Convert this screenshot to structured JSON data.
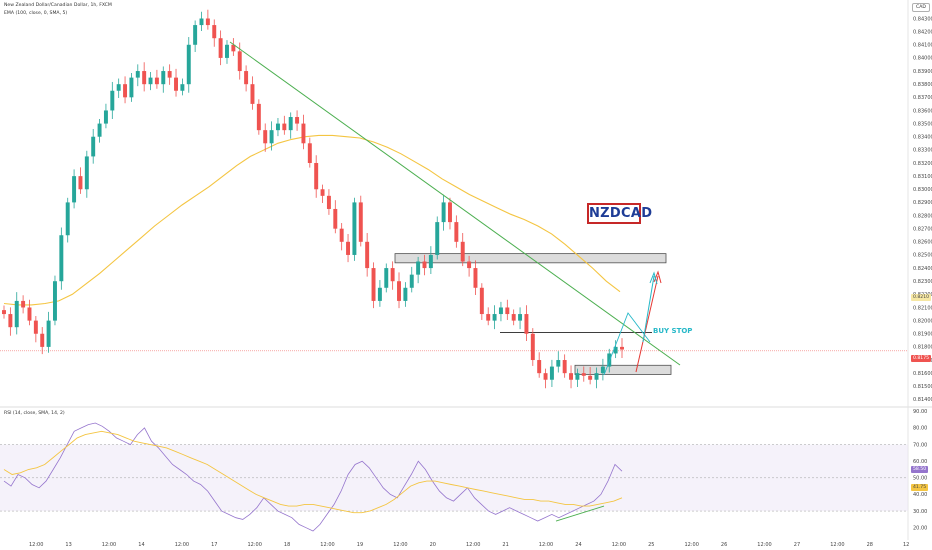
{
  "header": {
    "symbol": "New Zealand Dollar/Canadian Dollar, 1h, FXCM",
    "ema_label": "EMA (100, close, 0, SMA, 5)",
    "rsi_label": "RSI (14, close, SMA, 14, 2)",
    "currency_badge": "CAD"
  },
  "annotations": {
    "pair_label": "NZDCAD",
    "buy_stop": "BUY STOP"
  },
  "price_boxes": {
    "current_a": "0.8210",
    "current_b": "0.8175",
    "rsi_a": "58.50",
    "rsi_b": "41.75"
  },
  "colors": {
    "up": "#26a69a",
    "down": "#ef5350",
    "ema": "#f4c542",
    "trendline": "#4caf50",
    "rsi_line": "#9575cd",
    "rsi_ma": "#f4c542",
    "zone_fill": "#d6d6d6",
    "pair_border": "#c62828",
    "pair_text": "#1e3c96",
    "buy_stop": "#26b8c8"
  },
  "chart_data": [
    {
      "type": "candlestick",
      "y_ticks": [
        "0.84300",
        "0.84200",
        "0.84100",
        "0.84000",
        "0.83900",
        "0.83800",
        "0.83700",
        "0.83600",
        "0.83500",
        "0.83400",
        "0.83300",
        "0.83200",
        "0.83100",
        "0.83000",
        "0.82900",
        "0.82800",
        "0.82700",
        "0.82600",
        "0.82500",
        "0.82400",
        "0.82300",
        "0.82200",
        "0.82100",
        "0.82000",
        "0.81900",
        "0.81800",
        "0.81700",
        "0.81600",
        "0.81500",
        "0.81400"
      ],
      "ylim": [
        0.8135,
        0.8438
      ],
      "x_ticks": [
        "12:00",
        "13",
        "12:00",
        "14",
        "12:00",
        "17",
        "12:00",
        "18",
        "12:00",
        "19",
        "12:00",
        "20",
        "12:00",
        "21",
        "12:00",
        "24",
        "12:00",
        "25",
        "12:00",
        "26",
        "12:00",
        "27",
        "12:00",
        "28",
        "12"
      ],
      "ohlc_close": [
        0.8205,
        0.8195,
        0.8215,
        0.821,
        0.82,
        0.819,
        0.818,
        0.82,
        0.823,
        0.8265,
        0.829,
        0.831,
        0.83,
        0.8325,
        0.834,
        0.835,
        0.836,
        0.8375,
        0.838,
        0.837,
        0.8385,
        0.839,
        0.838,
        0.8385,
        0.838,
        0.839,
        0.8385,
        0.8375,
        0.838,
        0.841,
        0.8425,
        0.843,
        0.8425,
        0.8415,
        0.84,
        0.841,
        0.8405,
        0.839,
        0.838,
        0.8365,
        0.8345,
        0.8335,
        0.8345,
        0.835,
        0.8345,
        0.8355,
        0.835,
        0.8335,
        0.832,
        0.83,
        0.8295,
        0.8285,
        0.827,
        0.826,
        0.825,
        0.829,
        0.826,
        0.824,
        0.8215,
        0.8225,
        0.824,
        0.823,
        0.8215,
        0.8225,
        0.8235,
        0.8245,
        0.824,
        0.825,
        0.8275,
        0.829,
        0.8275,
        0.826,
        0.8245,
        0.824,
        0.8225,
        0.8205,
        0.82,
        0.8205,
        0.821,
        0.8205,
        0.82,
        0.8205,
        0.819,
        0.817,
        0.816,
        0.8155,
        0.8165,
        0.817,
        0.816,
        0.8155,
        0.816,
        0.8158,
        0.8155,
        0.816,
        0.8165,
        0.8175,
        0.818,
        0.8178
      ],
      "ema_100": [
        0.8213,
        0.8212,
        0.8212,
        0.8213,
        0.8215,
        0.822,
        0.8228,
        0.8236,
        0.8245,
        0.8254,
        0.8263,
        0.8272,
        0.828,
        0.8288,
        0.8295,
        0.8302,
        0.831,
        0.8318,
        0.8325,
        0.833,
        0.8335,
        0.8338,
        0.834,
        0.8341,
        0.8341,
        0.834,
        0.8339,
        0.8336,
        0.8332,
        0.8327,
        0.8321,
        0.8315,
        0.8308,
        0.8302,
        0.8296,
        0.8291,
        0.8286,
        0.8281,
        0.8277,
        0.8272,
        0.8266,
        0.8258,
        0.8249,
        0.824,
        0.823,
        0.8222
      ],
      "trendline": [
        [
          0.8432,
          "17 high"
        ],
        [
          0.8178,
          "25 12:00"
        ]
      ],
      "zones": [
        {
          "top": 0.8251,
          "bottom": 0.8244,
          "label": ""
        },
        {
          "top": 0.8166,
          "bottom": 0.8159,
          "label": ""
        }
      ],
      "buy_stop_level": 0.8191
    },
    {
      "type": "line",
      "title": "RSI (14, close, SMA, 14, 2)",
      "y_ticks": [
        "90.00",
        "80.00",
        "70.00",
        "60.00",
        "50.00",
        "40.00",
        "30.00",
        "20.00"
      ],
      "ylim": [
        15,
        92
      ],
      "bands": [
        70,
        50,
        30
      ],
      "series": [
        {
          "values": [
            48,
            45,
            52,
            50,
            46,
            44,
            48,
            55,
            62,
            70,
            78,
            80,
            82,
            83,
            81,
            78,
            74,
            72,
            70,
            76,
            80,
            72,
            68,
            63,
            58,
            55,
            52,
            48,
            46,
            42,
            36,
            30,
            28,
            26,
            25,
            28,
            32,
            38,
            34,
            30,
            28,
            26,
            22,
            20,
            18,
            22,
            28,
            34,
            42,
            52,
            58,
            60,
            56,
            50,
            44,
            40,
            38,
            45,
            52,
            60,
            55,
            48,
            42,
            38,
            36,
            40,
            44,
            38,
            34,
            30,
            28,
            30,
            32,
            30,
            28,
            26,
            24,
            26,
            28,
            26,
            28,
            30,
            32,
            34,
            36,
            40,
            48,
            58,
            54
          ]
        },
        {
          "values": [
            55,
            52,
            53,
            55,
            56,
            58,
            62,
            66,
            70,
            74,
            76,
            77,
            78,
            77,
            76,
            74,
            72,
            71,
            70,
            69,
            68,
            66,
            64,
            62,
            60,
            58,
            55,
            52,
            49,
            46,
            43,
            40,
            38,
            36,
            34,
            33,
            33,
            34,
            34,
            33,
            32,
            31,
            30,
            29,
            29,
            30,
            32,
            34,
            37,
            41,
            45,
            47,
            48,
            48,
            47,
            46,
            45,
            44,
            43,
            42,
            41,
            40,
            39,
            38,
            37,
            37,
            36,
            36,
            35,
            34,
            34,
            33,
            33,
            34,
            35,
            36,
            38
          ]
        }
      ]
    }
  ]
}
